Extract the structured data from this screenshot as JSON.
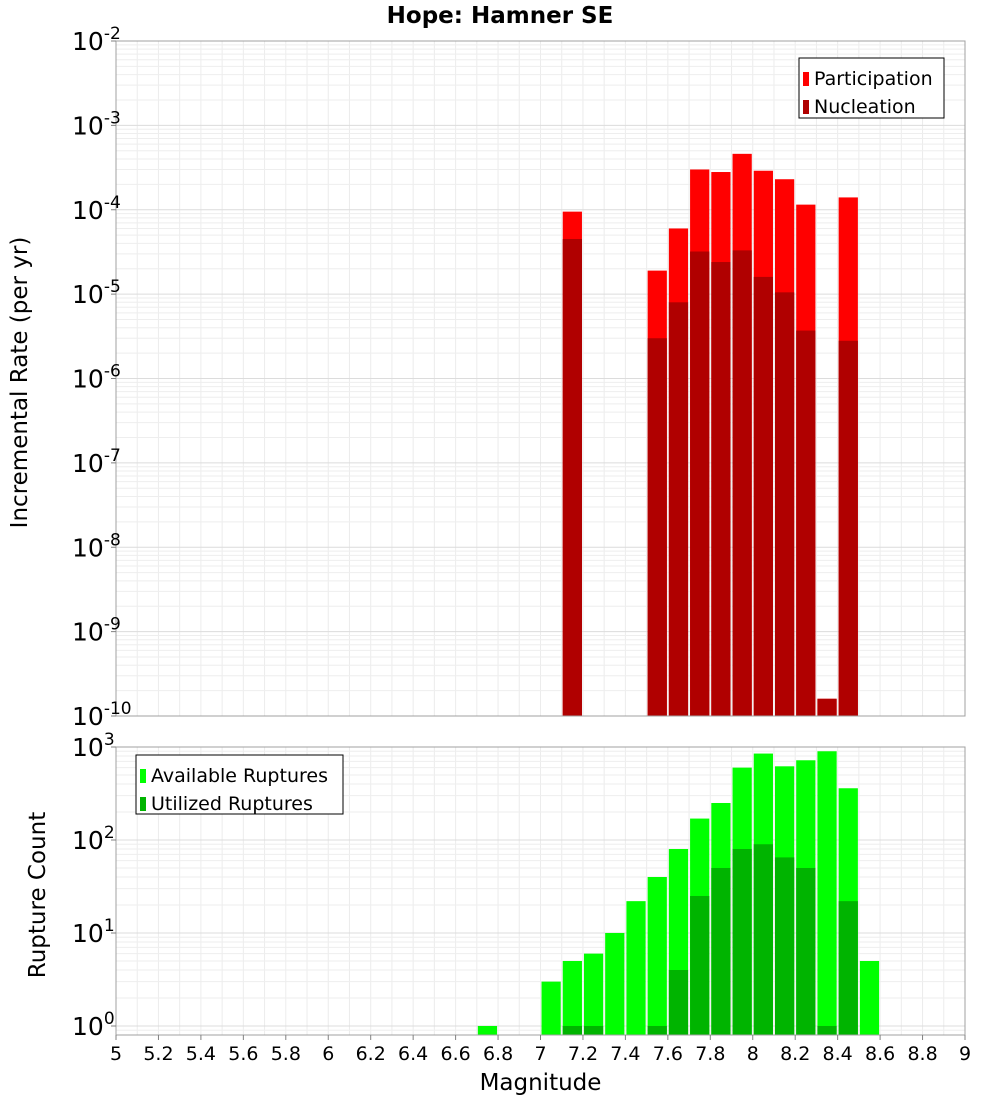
{
  "chart_data": [
    {
      "type": "bar",
      "title": "Hope: Hamner SE",
      "xlabel": "",
      "ylabel": "Incremental Rate (per yr)",
      "yscale": "log",
      "ylim": [
        1e-10,
        0.01
      ],
      "xlim": [
        5,
        9
      ],
      "bin_width": 0.1,
      "grid": true,
      "legend_position": "top-right",
      "colors": {
        "Participation": "#ff0000",
        "Nucleation": "#b00000"
      },
      "series": [
        {
          "name": "Participation",
          "x": [
            7.15,
            7.55,
            7.65,
            7.75,
            7.85,
            7.95,
            8.05,
            8.15,
            8.25,
            8.35,
            8.45
          ],
          "values": [
            9.5e-05,
            1.9e-05,
            6e-05,
            0.0003,
            0.00028,
            0.00046,
            0.00029,
            0.00023,
            0.000115,
            1.6e-10,
            0.00014
          ]
        },
        {
          "name": "Nucleation",
          "x": [
            7.15,
            7.55,
            7.65,
            7.75,
            7.85,
            7.95,
            8.05,
            8.15,
            8.25,
            8.35,
            8.45
          ],
          "values": [
            4.5e-05,
            3e-06,
            8e-06,
            3.2e-05,
            2.4e-05,
            3.3e-05,
            1.6e-05,
            1.05e-05,
            3.7e-06,
            1.6e-10,
            2.8e-06
          ]
        }
      ]
    },
    {
      "type": "bar",
      "title": "",
      "xlabel": "Magnitude",
      "ylabel": "Rupture Count",
      "yscale": "log",
      "ylim": [
        0.8,
        1000
      ],
      "xlim": [
        5,
        9
      ],
      "bin_width": 0.1,
      "grid": true,
      "legend_position": "top-left",
      "x_ticks": [
        "5",
        "5.2",
        "5.4",
        "5.6",
        "5.8",
        "6",
        "6.2",
        "6.4",
        "6.6",
        "6.8",
        "7",
        "7.2",
        "7.4",
        "7.6",
        "7.8",
        "8",
        "8.2",
        "8.4",
        "8.6",
        "8.8",
        "9"
      ],
      "colors": {
        "Available Ruptures": "#00ff00",
        "Utilized Ruptures": "#00b400"
      },
      "series": [
        {
          "name": "Available Ruptures",
          "x": [
            6.75,
            7.05,
            7.15,
            7.25,
            7.35,
            7.45,
            7.55,
            7.65,
            7.75,
            7.85,
            7.95,
            8.05,
            8.15,
            8.25,
            8.35,
            8.45,
            8.55
          ],
          "values": [
            1,
            3,
            5,
            6,
            10,
            22,
            40,
            80,
            170,
            250,
            600,
            850,
            620,
            720,
            900,
            360,
            5
          ]
        },
        {
          "name": "Utilized Ruptures",
          "x": [
            7.15,
            7.25,
            7.55,
            7.65,
            7.75,
            7.85,
            7.95,
            8.05,
            8.15,
            8.25,
            8.35,
            8.45
          ],
          "values": [
            1,
            1,
            1,
            4,
            25,
            50,
            80,
            90,
            65,
            50,
            1,
            22
          ]
        }
      ]
    }
  ],
  "decade_ticks_top": [
    {
      "base": "10",
      "exp": "-10"
    },
    {
      "base": "10",
      "exp": "-9"
    },
    {
      "base": "10",
      "exp": "-8"
    },
    {
      "base": "10",
      "exp": "-7"
    },
    {
      "base": "10",
      "exp": "-6"
    },
    {
      "base": "10",
      "exp": "-5"
    },
    {
      "base": "10",
      "exp": "-4"
    },
    {
      "base": "10",
      "exp": "-3"
    },
    {
      "base": "10",
      "exp": "-2"
    }
  ],
  "decade_ticks_bottom": [
    {
      "base": "10",
      "exp": "0"
    },
    {
      "base": "10",
      "exp": "1"
    },
    {
      "base": "10",
      "exp": "2"
    },
    {
      "base": "10",
      "exp": "3"
    }
  ]
}
